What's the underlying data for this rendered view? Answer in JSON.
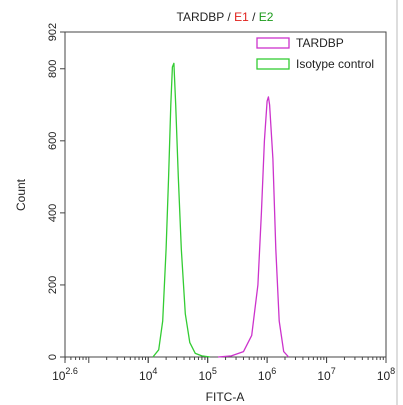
{
  "chart_data": {
    "type": "line",
    "title": {
      "parts": [
        {
          "text": "TARDBP",
          "color": "#222222"
        },
        {
          "text": " / ",
          "color": "#222222"
        },
        {
          "text": "E1",
          "color": "#e0201b"
        },
        {
          "text": " / ",
          "color": "#222222"
        },
        {
          "text": "E2",
          "color": "#1a9a1a"
        }
      ]
    },
    "xlabel": "FITC-A",
    "ylabel": "Count",
    "x_scale": "log",
    "xlim": [
      398,
      100000000
    ],
    "ylim": [
      0,
      902
    ],
    "x_ticks": [
      {
        "value": 398,
        "base": "10",
        "exp": "2.6"
      },
      {
        "value": 10000,
        "base": "10",
        "exp": "4"
      },
      {
        "value": 100000,
        "base": "10",
        "exp": "5"
      },
      {
        "value": 1000000,
        "base": "10",
        "exp": "6"
      },
      {
        "value": 10000000,
        "base": "10",
        "exp": "7"
      },
      {
        "value": 100000000,
        "base": "10",
        "exp": "8"
      }
    ],
    "y_ticks": [
      0,
      200,
      400,
      600,
      800,
      902
    ],
    "legend_position": "top-right",
    "series": [
      {
        "name": "TARDBP",
        "color": "#cc33cc",
        "x": [
          150000,
          250000,
          400000,
          550000,
          700000,
          800000,
          900000,
          1000000,
          1050000,
          1100000,
          1250000,
          1400000,
          1600000,
          1900000,
          2300000
        ],
        "y": [
          0,
          3,
          15,
          60,
          200,
          400,
          600,
          710,
          722,
          700,
          550,
          300,
          100,
          15,
          0
        ]
      },
      {
        "name": "Isotype control",
        "color": "#33cc33",
        "x": [
          12000,
          15000,
          17500,
          20000,
          22000,
          24000,
          25500,
          27000,
          29000,
          32000,
          36000,
          42000,
          50000,
          62000,
          80000,
          110000
        ],
        "y": [
          0,
          20,
          100,
          300,
          500,
          700,
          805,
          815,
          700,
          500,
          300,
          120,
          40,
          10,
          3,
          0
        ]
      }
    ]
  }
}
